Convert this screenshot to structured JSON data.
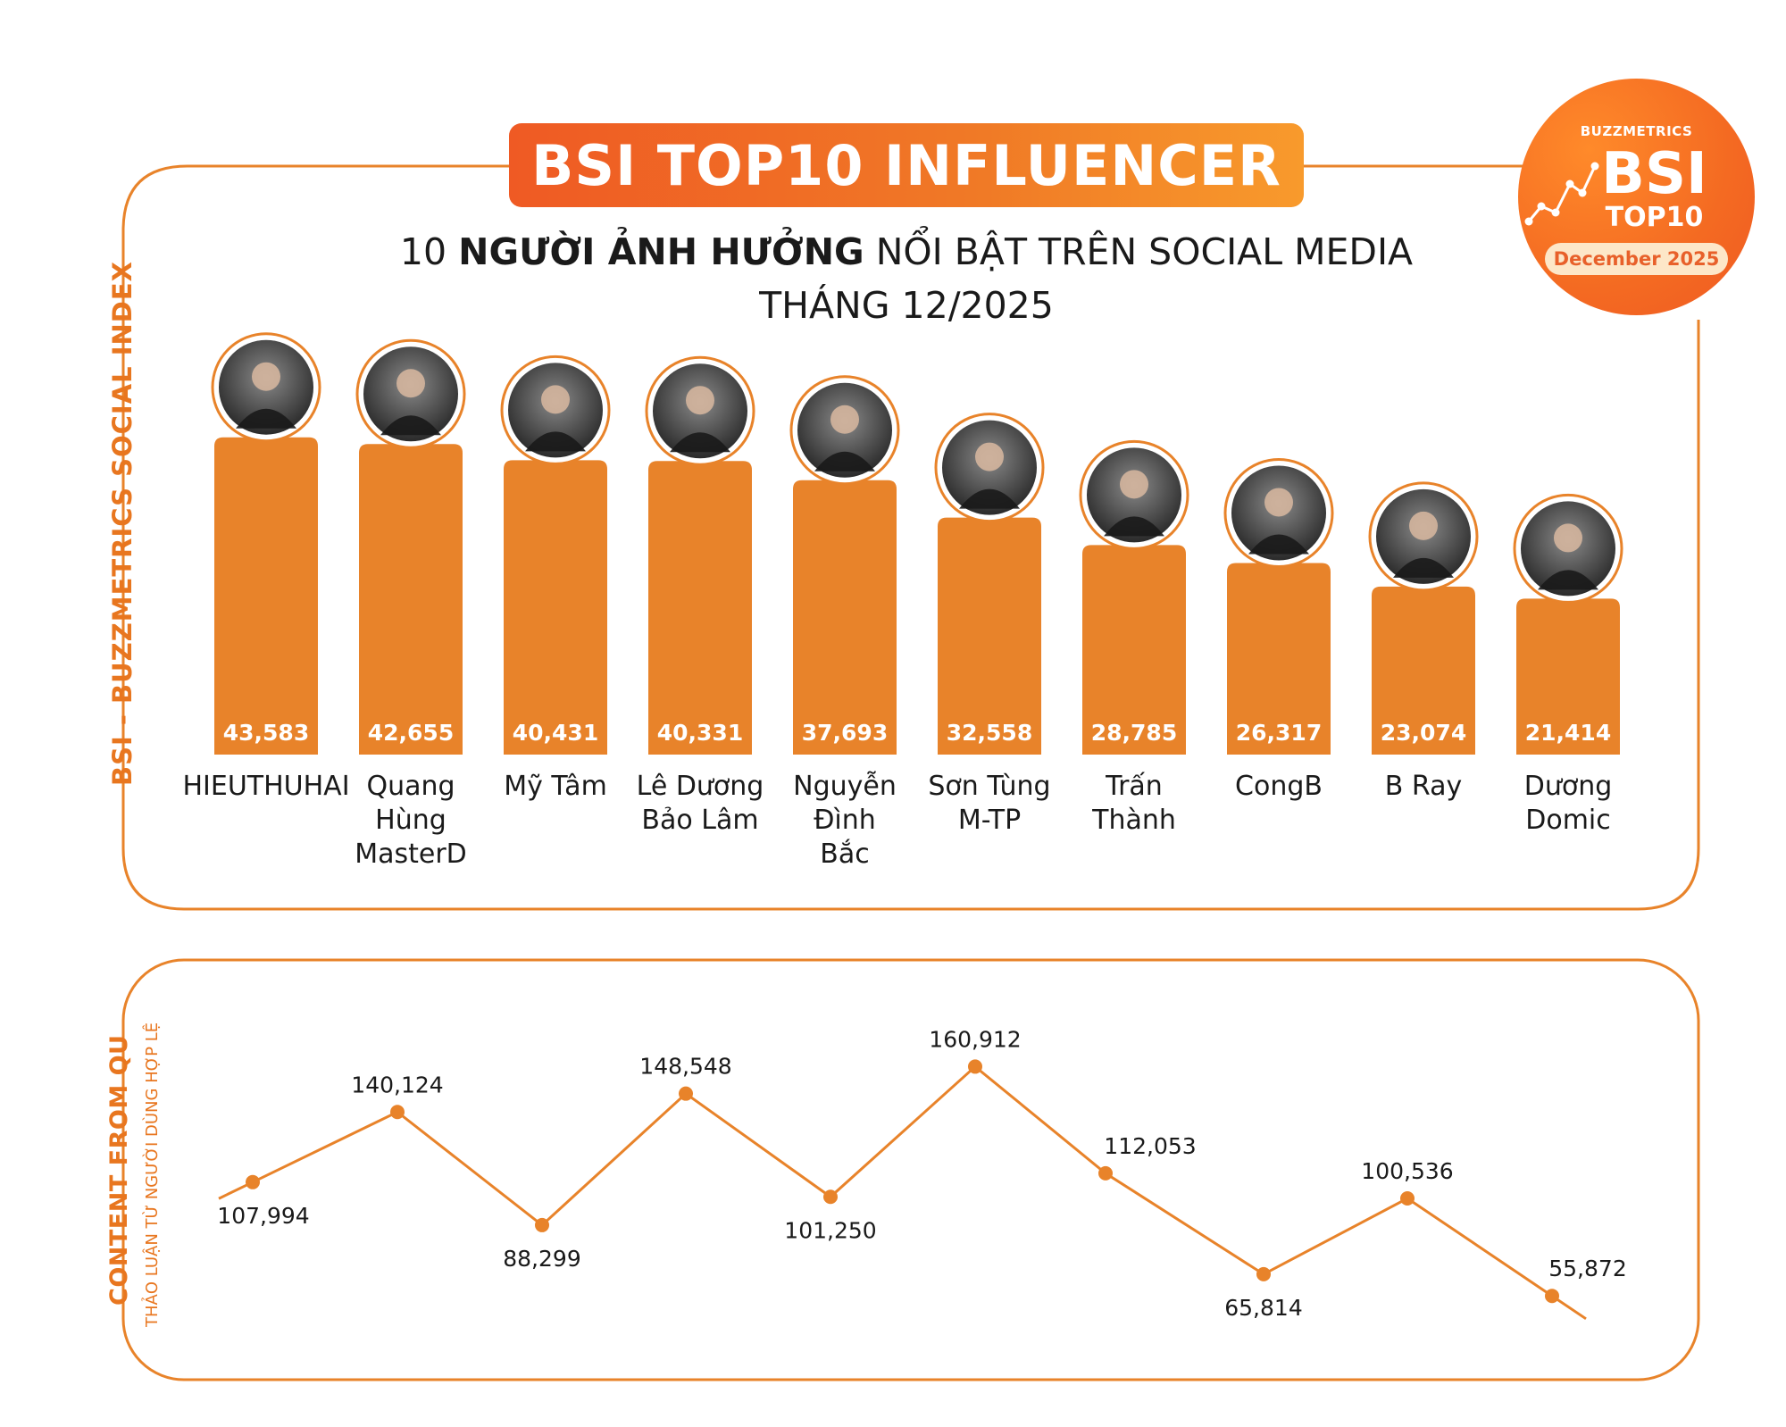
{
  "header": {
    "title": "BSI TOP10 INFLUENCER",
    "subtitle_pre": "10 ",
    "subtitle_bold": "NGƯỜI ẢNH HƯỞNG",
    "subtitle_post": " NỔI BẬT TRÊN SOCIAL MEDIA",
    "subtitle_line2": "THÁNG 12/2025"
  },
  "badge": {
    "brand": "BUZZMETRICS",
    "big": "BSI",
    "sub": "TOP10",
    "month": "December 2025"
  },
  "side_labels": {
    "top": "BSI - BUZZMETRICS SOCIAL INDEX",
    "bottom": "CONTENT FROM QU",
    "bottom_sub": "THẢO LUẬN TỪ NGƯỜI DÙNG HỢP LỆ"
  },
  "colors": {
    "bar": "#e8832a",
    "frame": "#e8832a",
    "line": "#e8832a",
    "accent": "#ef5a24"
  },
  "chart_data": [
    {
      "type": "bar",
      "categories": [
        "HIEUTHUHAI",
        "Quang Hùng MasterD",
        "Mỹ Tâm",
        "Lê Dương Bảo Lâm",
        "Nguyễn Đình Bắc",
        "Sơn Tùng M-TP",
        "Trấn Thành",
        "CongB",
        "B Ray",
        "Dương Domic"
      ],
      "category_lines": [
        [
          "HIEUTHUHAI"
        ],
        [
          "Quang",
          "Hùng",
          "MasterD"
        ],
        [
          "Mỹ Tâm"
        ],
        [
          "Lê Dương",
          "Bảo Lâm"
        ],
        [
          "Nguyễn",
          "Đình",
          "Bắc"
        ],
        [
          "Sơn Tùng",
          "M-TP"
        ],
        [
          "Trấn",
          "Thành"
        ],
        [
          "CongB"
        ],
        [
          "B Ray"
        ],
        [
          "Dương",
          "Domic"
        ]
      ],
      "value_labels": [
        "43,583",
        "42,655",
        "40,431",
        "40,331",
        "37,693",
        "32,558",
        "28,785",
        "26,317",
        "23,074",
        "21,414"
      ],
      "values": [
        43583,
        42655,
        40431,
        40331,
        37693,
        32558,
        28785,
        26317,
        23074,
        21414
      ],
      "ylim": [
        0,
        46000
      ],
      "grid": false,
      "legend": "none",
      "ylabel": "BSI - BUZZMETRICS SOCIAL INDEX"
    },
    {
      "type": "line",
      "categories": [
        "HIEUTHUHAI",
        "Quang Hùng MasterD",
        "Mỹ Tâm",
        "Lê Dương Bảo Lâm",
        "Nguyễn Đình Bắc",
        "Sơn Tùng M-TP",
        "Trấn Thành",
        "CongB",
        "B Ray",
        "Dương Domic"
      ],
      "values": [
        107994,
        140124,
        88299,
        148548,
        101250,
        160912,
        112053,
        65814,
        100536,
        55872
      ],
      "value_labels": [
        "107,994",
        "140,124",
        "88,299",
        "148,548",
        "101,250",
        "160,912",
        "112,053",
        "65,814",
        "100,536",
        "55,872"
      ],
      "label_position": [
        "below",
        "above",
        "below",
        "above",
        "below",
        "above",
        "above",
        "below",
        "above",
        "above"
      ],
      "ylim": [
        40000,
        175000
      ],
      "grid": false,
      "legend": "none",
      "ylabel": "CONTENT FROM QU"
    }
  ]
}
